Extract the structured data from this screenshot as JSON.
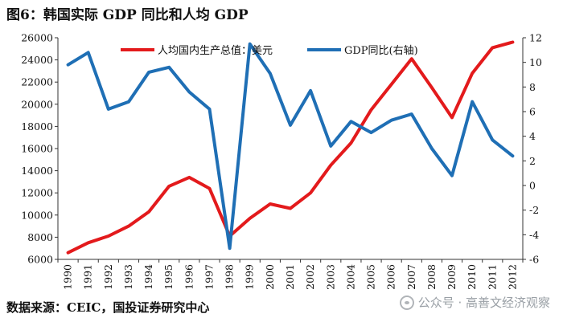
{
  "title": "图6：韩国实际 GDP 同比和人均 GDP",
  "source": "数据来源：CEIC，国投证券研究中心",
  "watermark": "公众号 · 高善文经济观察",
  "watermark_icon": "wechat-official-account-icon",
  "chart_data": {
    "type": "line",
    "x": [
      "1990",
      "1991",
      "1992",
      "1993",
      "1994",
      "1995",
      "1996",
      "1997",
      "1998",
      "1999",
      "2000",
      "2001",
      "2002",
      "2003",
      "2004",
      "2005",
      "2006",
      "2007",
      "2008",
      "2009",
      "2010",
      "2011",
      "2012"
    ],
    "left_axis": {
      "ylim": [
        6000,
        26000
      ],
      "ticks": [
        "6000",
        "8000",
        "10000",
        "12000",
        "14000",
        "16000",
        "18000",
        "20000",
        "22000",
        "24000",
        "26000"
      ]
    },
    "right_axis": {
      "ylim": [
        -6,
        12
      ],
      "ticks": [
        "-6",
        "-4",
        "-2",
        "0",
        "2",
        "4",
        "6",
        "8",
        "10",
        "12"
      ]
    },
    "series": [
      {
        "name": "人均国内生产总值：美元",
        "axis": "left",
        "color": "#e31a1c",
        "values": [
          6600,
          7500,
          8100,
          9000,
          10300,
          12600,
          13400,
          12400,
          8100,
          9700,
          11000,
          10600,
          12000,
          14500,
          16500,
          19500,
          21800,
          24100,
          21500,
          18800,
          22800,
          25100,
          25600
        ]
      },
      {
        "name": "GDP同比(右轴)",
        "axis": "right",
        "color": "#1f6fb5",
        "values": [
          9.8,
          10.8,
          6.2,
          6.8,
          9.2,
          9.6,
          7.6,
          6.2,
          -5.1,
          11.5,
          9.1,
          4.9,
          7.7,
          3.2,
          5.2,
          4.3,
          5.3,
          5.8,
          3.0,
          0.8,
          6.8,
          3.7,
          2.4
        ]
      }
    ],
    "legend": {
      "placement": "top",
      "items": [
        {
          "label": "人均国内生产总值：美元",
          "color": "#e31a1c"
        },
        {
          "label": "GDP同比(右轴)",
          "color": "#1f6fb5"
        }
      ]
    },
    "grid": false
  }
}
